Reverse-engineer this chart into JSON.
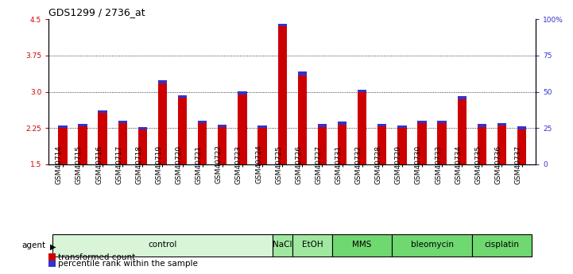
{
  "title": "GDS1299 / 2736_at",
  "samples": [
    "GSM40714",
    "GSM40715",
    "GSM40716",
    "GSM40717",
    "GSM40718",
    "GSM40719",
    "GSM40720",
    "GSM40721",
    "GSM40722",
    "GSM40723",
    "GSM40724",
    "GSM40725",
    "GSM40726",
    "GSM40727",
    "GSM40731",
    "GSM40732",
    "GSM40728",
    "GSM40729",
    "GSM40730",
    "GSM40733",
    "GSM40734",
    "GSM40735",
    "GSM40736",
    "GSM40737"
  ],
  "red_values": [
    2.25,
    2.28,
    2.57,
    2.35,
    2.22,
    3.18,
    2.87,
    2.35,
    2.27,
    2.95,
    2.25,
    4.35,
    3.33,
    2.27,
    2.32,
    2.99,
    2.28,
    2.25,
    2.35,
    2.35,
    2.85,
    2.27,
    2.3,
    2.22
  ],
  "blue_values": [
    0.06,
    0.06,
    0.05,
    0.06,
    0.05,
    0.06,
    0.05,
    0.06,
    0.05,
    0.06,
    0.05,
    0.06,
    0.09,
    0.06,
    0.06,
    0.06,
    0.06,
    0.06,
    0.06,
    0.06,
    0.06,
    0.06,
    0.06,
    0.06
  ],
  "red_color": "#cc0000",
  "blue_color": "#3333cc",
  "ylim_left": [
    1.5,
    4.5
  ],
  "ylim_right": [
    0,
    100
  ],
  "yticks_left": [
    1.5,
    2.25,
    3.0,
    3.75,
    4.5
  ],
  "yticks_right": [
    0,
    25,
    50,
    75,
    100
  ],
  "ytick_labels_right": [
    "0",
    "25",
    "50",
    "75",
    "100%"
  ],
  "gridlines": [
    2.25,
    3.0,
    3.75
  ],
  "agent_groups": [
    {
      "label": "control",
      "start": 0,
      "end": 10,
      "color": "#d8f5d8"
    },
    {
      "label": "NaCl",
      "start": 11,
      "end": 11,
      "color": "#a0e8a0"
    },
    {
      "label": "EtOH",
      "start": 12,
      "end": 13,
      "color": "#a0e8a0"
    },
    {
      "label": "MMS",
      "start": 14,
      "end": 16,
      "color": "#70d870"
    },
    {
      "label": "bleomycin",
      "start": 17,
      "end": 20,
      "color": "#70d870"
    },
    {
      "label": "cisplatin",
      "start": 21,
      "end": 23,
      "color": "#70d870"
    }
  ],
  "bar_width": 0.45,
  "background_color": "#ffffff",
  "plot_bg_color": "#ffffff",
  "tick_label_fontsize": 6.5,
  "title_fontsize": 9,
  "legend_fontsize": 7.5,
  "agent_label_fontsize": 7.5
}
